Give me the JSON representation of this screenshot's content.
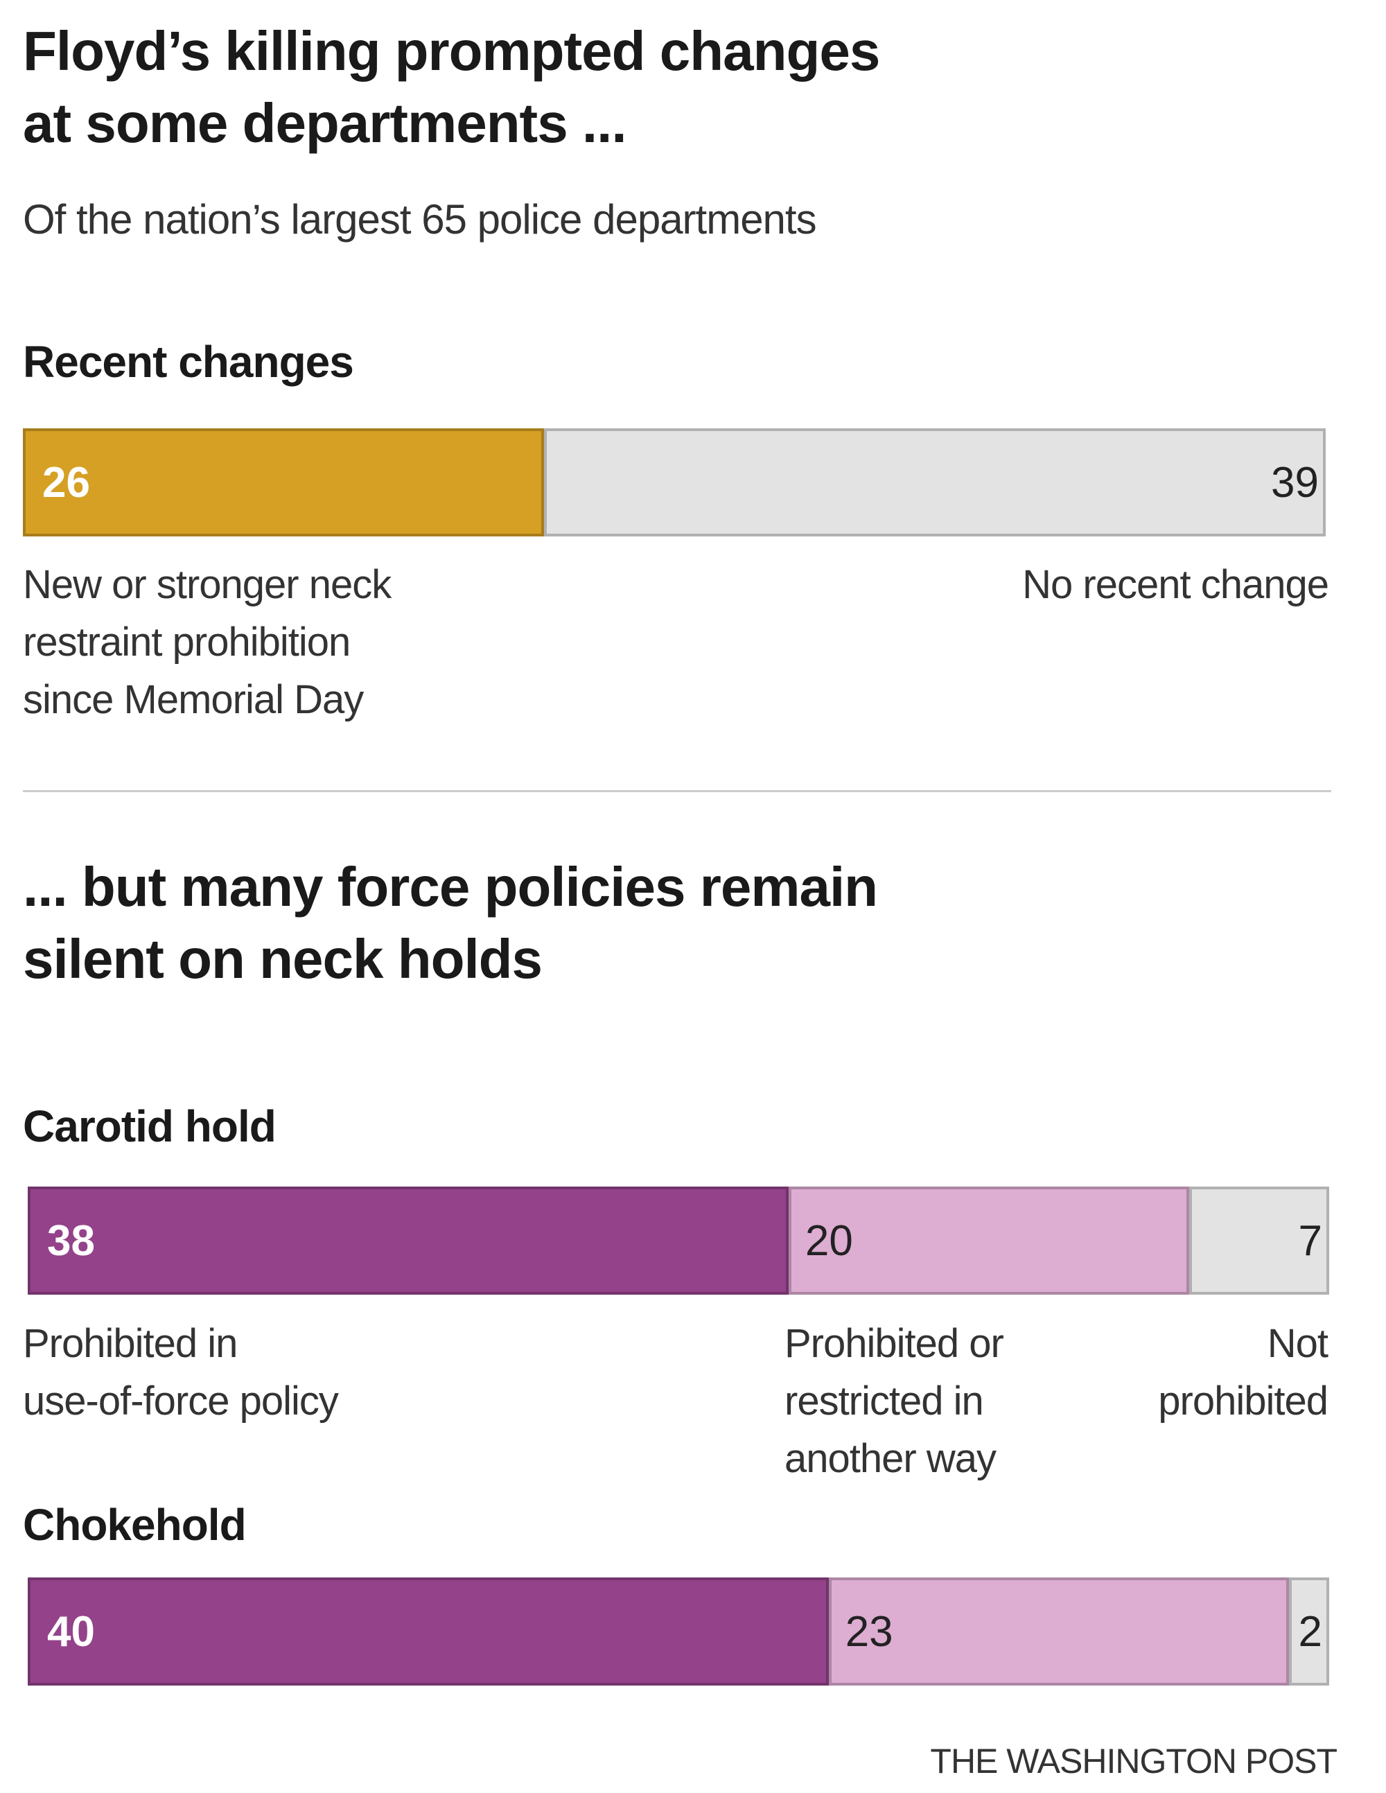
{
  "chart_data": [
    {
      "type": "bar",
      "orientation": "horizontal-stacked",
      "title": "Floyd’s killing prompted changes at some departments ...",
      "title_lines": [
        "Floyd’s killing prompted changes",
        "at some departments ..."
      ],
      "subtitle": "Of the nation’s largest 65 police departments",
      "groups": [
        {
          "name": "Recent changes",
          "segments": [
            {
              "label": "New or stronger neck restraint prohibition since Memorial Day",
              "label_lines": [
                "New or stronger neck",
                "restraint prohibition",
                "since Memorial Day"
              ],
              "value": 26,
              "color": "#d6a024"
            },
            {
              "label": "No recent change",
              "label_lines": [
                "No recent change"
              ],
              "value": 39,
              "color": "#e3e3e3"
            }
          ]
        }
      ]
    },
    {
      "type": "bar",
      "orientation": "horizontal-stacked",
      "title": "... but many force policies remain silent on neck holds",
      "title_lines": [
        "... but many force policies remain",
        "silent on neck holds"
      ],
      "groups": [
        {
          "name": "Carotid hold",
          "segments": [
            {
              "label": "Prohibited in use-of-force policy",
              "label_lines": [
                "Prohibited in",
                "use-of-force policy"
              ],
              "value": 38,
              "color": "#94428a"
            },
            {
              "label": "Prohibited or restricted in another way",
              "label_lines": [
                "Prohibited or",
                "restricted in",
                "another way"
              ],
              "value": 20,
              "color": "#ddadd2"
            },
            {
              "label": "Not prohibited",
              "label_lines": [
                "Not",
                "prohibited"
              ],
              "value": 7,
              "color": "#e3e3e3"
            }
          ]
        },
        {
          "name": "Chokehold",
          "segments": [
            {
              "value": 40,
              "color": "#94428a"
            },
            {
              "value": 23,
              "color": "#ddadd2"
            },
            {
              "value": 2,
              "color": "#e3e3e3"
            }
          ]
        }
      ]
    }
  ],
  "footer": {
    "credit": "THE WASHINGTON POST"
  }
}
